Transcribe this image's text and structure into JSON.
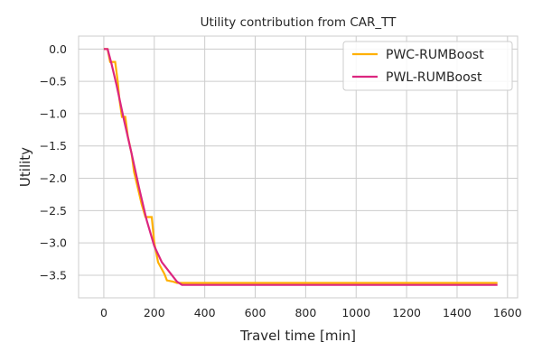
{
  "chart_data": {
    "type": "line",
    "title": "Utility contribution from CAR_TT",
    "xlabel": "Travel time [min]",
    "ylabel": "Utility",
    "xlim": [
      -100,
      1640
    ],
    "ylim": [
      -3.85,
      0.2
    ],
    "xticks": [
      0,
      200,
      400,
      600,
      800,
      1000,
      1200,
      1400,
      1600
    ],
    "xtick_labels": [
      "0",
      "200",
      "400",
      "600",
      "800",
      "1000",
      "1200",
      "1400",
      "1600"
    ],
    "yticks": [
      0.0,
      -0.5,
      -1.0,
      -1.5,
      -2.0,
      -2.5,
      -3.0,
      -3.5
    ],
    "ytick_labels": [
      "0.0",
      "−0.5",
      "−1.0",
      "−1.5",
      "−2.0",
      "−2.5",
      "−3.0",
      "−3.5"
    ],
    "grid": true,
    "legend_position": "top-right",
    "series": [
      {
        "name": "PWC-RUMBoost",
        "color": "#ffb000",
        "style": "step",
        "x": [
          0,
          15,
          25,
          45,
          55,
          62,
          72,
          85,
          95,
          110,
          120,
          135,
          150,
          165,
          190,
          200,
          215,
          240,
          250,
          275,
          290,
          320,
          1560
        ],
        "y": [
          0.0,
          0.0,
          -0.2,
          -0.2,
          -0.5,
          -0.78,
          -1.05,
          -1.05,
          -1.35,
          -1.62,
          -1.9,
          -2.15,
          -2.4,
          -2.6,
          -2.6,
          -3.0,
          -3.3,
          -3.48,
          -3.58,
          -3.6,
          -3.62,
          -3.62,
          -3.62
        ]
      },
      {
        "name": "PWL-RUMBoost",
        "color": "#dc267f",
        "style": "line",
        "x": [
          0,
          15,
          30,
          50,
          80,
          110,
          140,
          170,
          200,
          230,
          260,
          290,
          310,
          1560
        ],
        "y": [
          0.0,
          0.0,
          -0.22,
          -0.55,
          -1.1,
          -1.62,
          -2.15,
          -2.65,
          -3.05,
          -3.3,
          -3.45,
          -3.6,
          -3.65,
          -3.65
        ]
      }
    ]
  }
}
